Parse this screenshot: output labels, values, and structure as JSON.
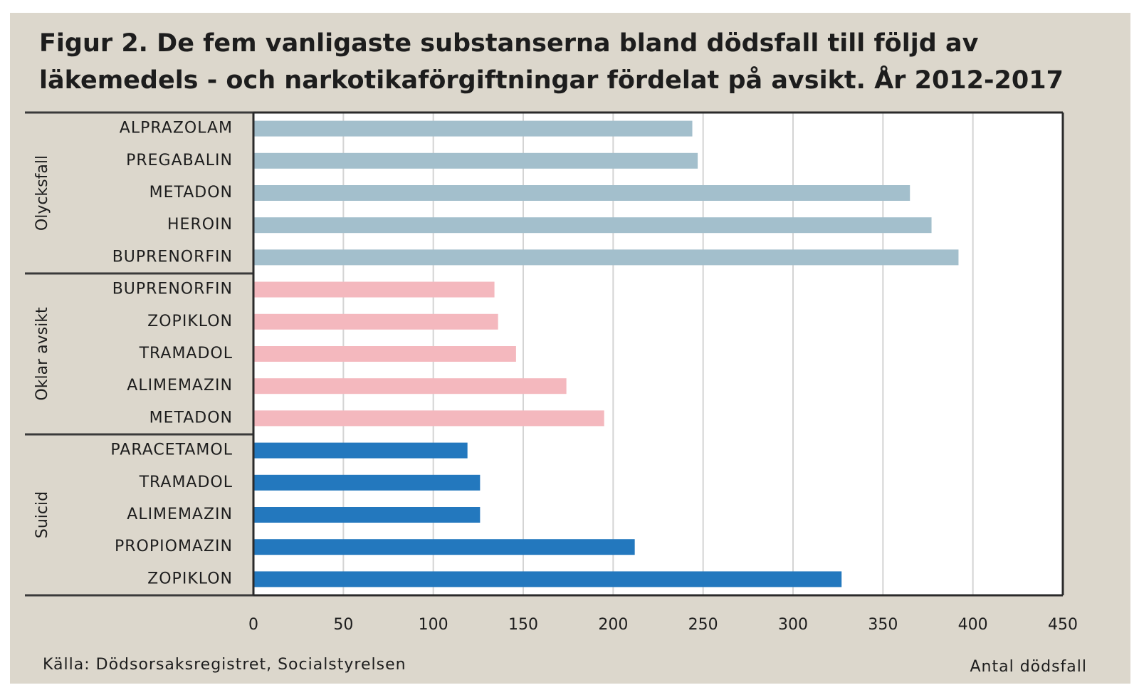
{
  "chart_data": {
    "type": "bar",
    "orientation": "horizontal",
    "title": [
      "Figur 2. De fem vanligaste substanserna bland dödsfall till följd av",
      "läkemedels - och narkotikaförgiftningar fördelat på avsikt. År 2012-2017"
    ],
    "groups": [
      {
        "name": "Olycksfall",
        "color": "#a3bfcc",
        "categories": [
          "ALPRAZOLAM",
          "PREGABALIN",
          "METADON",
          "HEROIN",
          "BUPRENORFIN"
        ],
        "values": [
          244,
          247,
          365,
          377,
          392
        ]
      },
      {
        "name": "Oklar avsikt",
        "color": "#f4b8be",
        "categories": [
          "BUPRENORFIN",
          "ZOPIKLON",
          "TRAMADOL",
          "ALIMEMAZIN",
          "METADON"
        ],
        "values": [
          134,
          136,
          146,
          174,
          195
        ]
      },
      {
        "name": "Suicid",
        "color": "#2378be",
        "categories": [
          "PARACETAMOL",
          "TRAMADOL",
          "ALIMEMAZIN",
          "PROPIOMAZIN",
          "ZOPIKLON"
        ],
        "values": [
          119,
          126,
          126,
          212,
          327
        ]
      }
    ],
    "xlim": [
      0,
      450
    ],
    "xticks": [
      0,
      50,
      100,
      150,
      200,
      250,
      300,
      350,
      400,
      450
    ],
    "grid": true,
    "xlabel": "Antal dödsfall",
    "source": "Källa: Dödsorsaksregistret, Socialstyrelsen"
  }
}
